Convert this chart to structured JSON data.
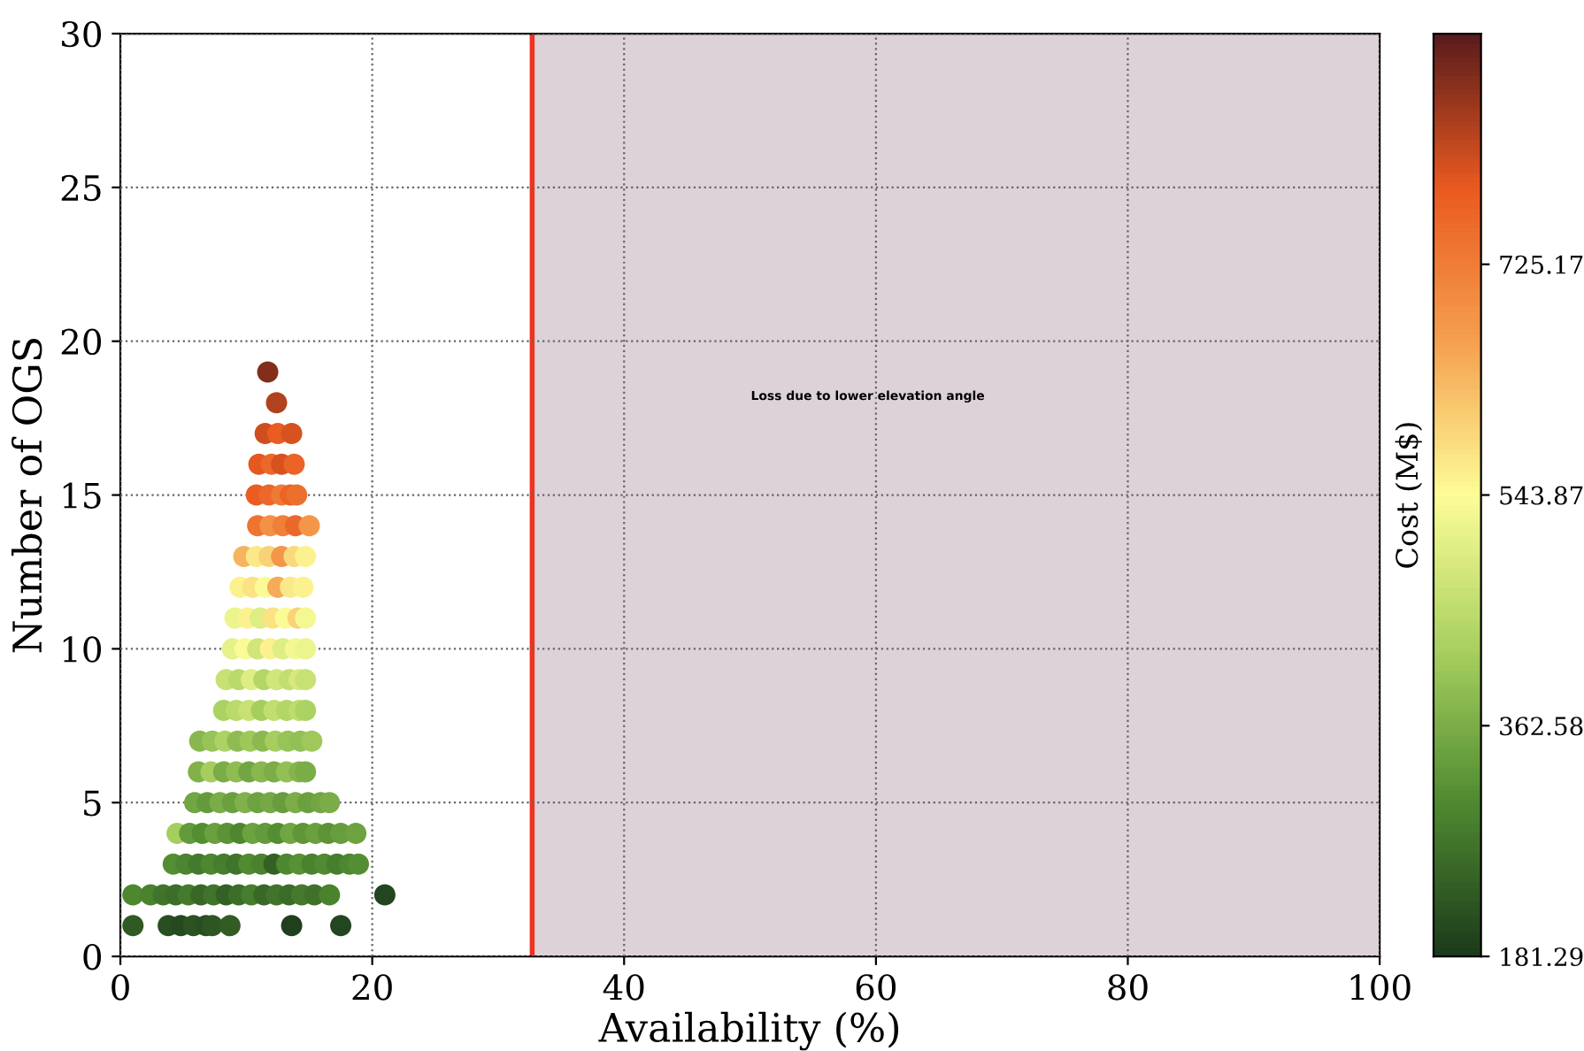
{
  "chart_data": {
    "type": "scatter",
    "xlabel": "Availability (%)",
    "ylabel": "Number of OGS",
    "clabel": "Cost (M$)",
    "xlim": [
      0,
      100
    ],
    "ylim": [
      0,
      30
    ],
    "xticks": [
      0,
      20,
      40,
      60,
      80,
      100
    ],
    "yticks": [
      0,
      5,
      10,
      15,
      20,
      25,
      30
    ],
    "clim": [
      181.29,
      906.45
    ],
    "cticks": [
      181.29,
      362.58,
      543.87,
      725.17
    ],
    "grid": true,
    "marker": "circle",
    "ref_lines": [
      {
        "axis": "x",
        "value": 32.7,
        "color": "#ee3322"
      }
    ],
    "bands": [
      {
        "axis": "x",
        "from": 32.7,
        "to": 100,
        "label": "Loss due to lower elevation angle",
        "color": "#dcd2d8"
      }
    ],
    "series": [
      {
        "x": [
          1.0,
          3.8,
          4.8,
          5.8,
          6.8,
          7.3,
          8.7,
          13.6,
          17.5,
          1.0,
          2.4,
          3.4,
          4.4,
          5.4,
          6.4,
          7.4,
          8.4,
          9.4,
          10.4,
          11.4,
          12.4,
          13.4,
          14.4,
          15.4,
          16.6,
          21.0,
          4.2,
          5.2,
          6.2,
          7.2,
          8.2,
          9.2,
          10.2,
          11.2,
          12.2,
          13.2,
          14.2,
          15.2,
          16.2,
          17.2,
          18.2,
          18.9,
          4.5,
          5.5,
          6.5,
          7.5,
          8.5,
          9.5,
          10.5,
          11.5,
          12.5,
          13.5,
          14.5,
          15.5,
          16.5,
          17.5,
          18.7,
          5.9,
          6.9,
          7.9,
          8.9,
          9.9,
          10.9,
          11.9,
          12.9,
          13.9,
          14.9,
          15.9,
          16.6,
          6.2,
          7.2,
          8.2,
          9.2,
          10.2,
          11.2,
          12.2,
          13.2,
          14.2,
          14.7,
          6.3,
          7.3,
          8.3,
          9.3,
          10.3,
          11.3,
          12.3,
          13.3,
          14.3,
          15.2,
          8.2,
          9.2,
          10.2,
          11.2,
          12.2,
          13.2,
          14.2,
          14.7,
          8.4,
          9.4,
          10.4,
          11.4,
          12.4,
          13.4,
          14.2,
          14.7,
          8.9,
          9.9,
          10.9,
          11.9,
          12.9,
          13.9,
          14.7,
          9.1,
          10.1,
          11.1,
          12.1,
          13.1,
          14.1,
          14.7,
          9.5,
          10.5,
          11.5,
          12.5,
          13.5,
          14.5,
          9.8,
          10.8,
          11.8,
          12.8,
          13.8,
          14.7,
          10.9,
          11.9,
          12.9,
          13.9,
          15.0,
          10.8,
          11.8,
          12.8,
          13.5,
          14.0,
          11.0,
          12.0,
          12.8,
          13.8,
          11.5,
          12.5,
          13.6,
          12.4,
          11.7
        ],
        "values": [
          1,
          1,
          1,
          1,
          1,
          1,
          1,
          1,
          1,
          2,
          2,
          2,
          2,
          2,
          2,
          2,
          2,
          2,
          2,
          2,
          2,
          2,
          2,
          2,
          2,
          2,
          3,
          3,
          3,
          3,
          3,
          3,
          3,
          3,
          3,
          3,
          3,
          3,
          3,
          3,
          3,
          3,
          4,
          4,
          4,
          4,
          4,
          4,
          4,
          4,
          4,
          4,
          4,
          4,
          4,
          4,
          4,
          5,
          5,
          5,
          5,
          5,
          5,
          5,
          5,
          5,
          5,
          5,
          5,
          6,
          6,
          6,
          6,
          6,
          6,
          6,
          6,
          6,
          6,
          7,
          7,
          7,
          7,
          7,
          7,
          7,
          7,
          7,
          7,
          8,
          8,
          8,
          8,
          8,
          8,
          8,
          8,
          9,
          9,
          9,
          9,
          9,
          9,
          9,
          9,
          10,
          10,
          10,
          10,
          10,
          10,
          10,
          11,
          11,
          11,
          11,
          11,
          11,
          11,
          12,
          12,
          12,
          12,
          12,
          12,
          13,
          13,
          13,
          13,
          13,
          13,
          14,
          14,
          14,
          14,
          14,
          15,
          15,
          15,
          15,
          15,
          16,
          16,
          16,
          16,
          17,
          17,
          17,
          18,
          19
        ],
        "cvalues": [
          230,
          215,
          205,
          220,
          210,
          225,
          235,
          190,
          200,
          300,
          290,
          270,
          260,
          280,
          250,
          270,
          240,
          260,
          285,
          250,
          270,
          255,
          280,
          265,
          290,
          200,
          310,
          295,
          280,
          300,
          285,
          270,
          305,
          290,
          240,
          300,
          315,
          290,
          305,
          285,
          300,
          310,
          420,
          330,
          310,
          340,
          320,
          300,
          345,
          330,
          310,
          350,
          325,
          340,
          320,
          335,
          345,
          350,
          330,
          360,
          340,
          370,
          345,
          355,
          335,
          365,
          340,
          350,
          360,
          370,
          420,
          360,
          390,
          350,
          380,
          365,
          395,
          375,
          360,
          380,
          400,
          430,
          390,
          410,
          385,
          420,
          400,
          395,
          410,
          430,
          450,
          470,
          420,
          460,
          440,
          455,
          430,
          470,
          450,
          500,
          440,
          480,
          460,
          490,
          470,
          510,
          540,
          480,
          560,
          500,
          530,
          520,
          520,
          560,
          500,
          580,
          540,
          600,
          530,
          560,
          580,
          540,
          650,
          570,
          560,
          640,
          570,
          600,
          680,
          590,
          560,
          740,
          690,
          720,
          760,
          680,
          780,
          760,
          730,
          770,
          750,
          790,
          760,
          800,
          770,
          810,
          780,
          800,
          830,
          870
        ]
      }
    ]
  }
}
